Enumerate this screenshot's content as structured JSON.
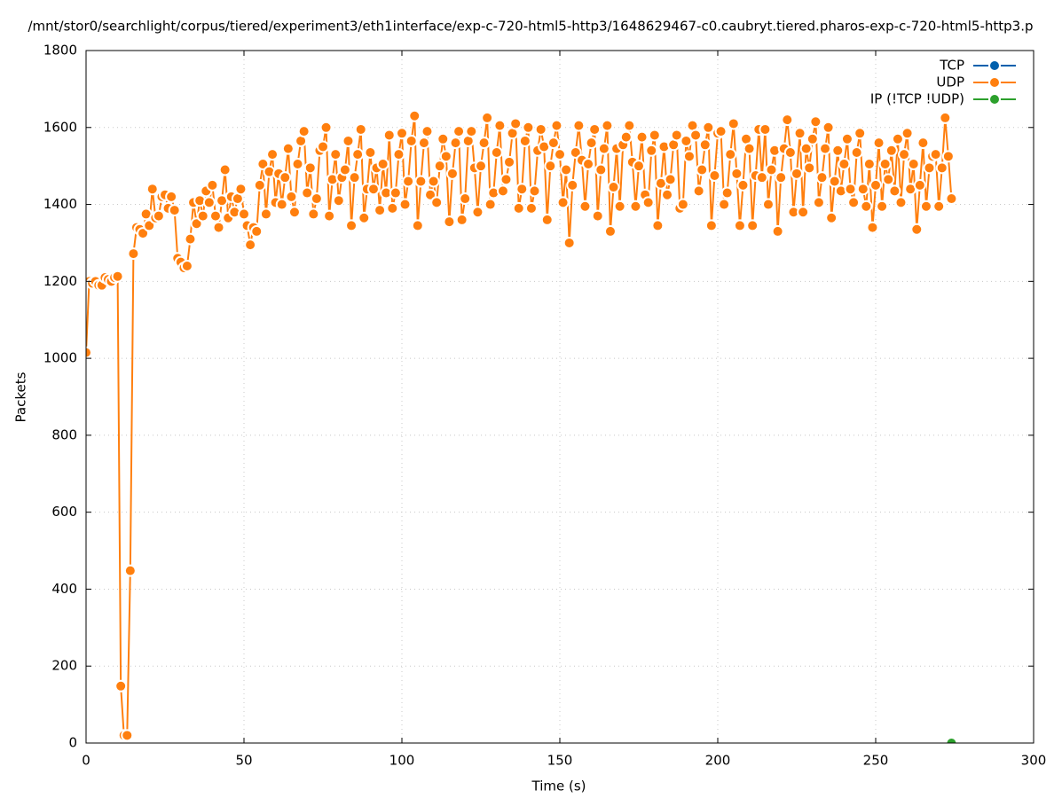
{
  "chart_data": {
    "type": "line",
    "title": "/mnt/stor0/searchlight/corpus/tiered/experiment3/eth1interface/exp-c-720-html5-http3/1648629467-c0.caubryt.tiered.pharos-exp-c-720-html5-http3.p",
    "x_label": "Time (s)",
    "y_label": "Packets",
    "xlim": [
      0,
      300
    ],
    "xticks": [
      0,
      50,
      100,
      150,
      200,
      250,
      300
    ],
    "ylim": [
      0,
      1800
    ],
    "yticks": [
      0,
      200,
      400,
      600,
      800,
      1000,
      1200,
      1400,
      1600,
      1800
    ],
    "grid": true,
    "legend": "top-right",
    "series": [
      {
        "name": "TCP",
        "color": "#0060ad",
        "x": [],
        "values": []
      },
      {
        "name": "UDP",
        "color": "#ff7f0e",
        "x": [
          0,
          1,
          2,
          3,
          4,
          5,
          6,
          7,
          8,
          9,
          10,
          11,
          12,
          13,
          14,
          15,
          16,
          17,
          18,
          19,
          20,
          21,
          22,
          23,
          24,
          25,
          26,
          27,
          28,
          29,
          30,
          31,
          32,
          33,
          34,
          35,
          36,
          37,
          38,
          39,
          40,
          41,
          42,
          43,
          44,
          45,
          46,
          47,
          48,
          49,
          50,
          51,
          52,
          53,
          54,
          55,
          56,
          57,
          58,
          59,
          60,
          61,
          62,
          63,
          64,
          65,
          66,
          67,
          68,
          69,
          70,
          71,
          72,
          73,
          74,
          75,
          76,
          77,
          78,
          79,
          80,
          81,
          82,
          83,
          84,
          85,
          86,
          87,
          88,
          89,
          90,
          91,
          92,
          93,
          94,
          95,
          96,
          97,
          98,
          99,
          100,
          101,
          102,
          103,
          104,
          105,
          106,
          107,
          108,
          109,
          110,
          111,
          112,
          113,
          114,
          115,
          116,
          117,
          118,
          119,
          120,
          121,
          122,
          123,
          124,
          125,
          126,
          127,
          128,
          129,
          130,
          131,
          132,
          133,
          134,
          135,
          136,
          137,
          138,
          139,
          140,
          141,
          142,
          143,
          144,
          145,
          146,
          147,
          148,
          149,
          150,
          151,
          152,
          153,
          154,
          155,
          156,
          157,
          158,
          159,
          160,
          161,
          162,
          163,
          164,
          165,
          166,
          167,
          168,
          169,
          170,
          171,
          172,
          173,
          174,
          175,
          176,
          177,
          178,
          179,
          180,
          181,
          182,
          183,
          184,
          185,
          186,
          187,
          188,
          189,
          190,
          191,
          192,
          193,
          194,
          195,
          196,
          197,
          198,
          199,
          200,
          201,
          202,
          203,
          204,
          205,
          206,
          207,
          208,
          209,
          210,
          211,
          212,
          213,
          214,
          215,
          216,
          217,
          218,
          219,
          220,
          221,
          222,
          223,
          224,
          225,
          226,
          227,
          228,
          229,
          230,
          231,
          232,
          233,
          234,
          235,
          236,
          237,
          238,
          239,
          240,
          241,
          242,
          243,
          244,
          245,
          246,
          247,
          248,
          249,
          250,
          251,
          252,
          253,
          254,
          255,
          256,
          257,
          258,
          259,
          260,
          261,
          262,
          263,
          264,
          265,
          266,
          267,
          268,
          269,
          270,
          271,
          272,
          273,
          274
        ],
        "values": [
          1015,
          1200,
          1195,
          1200,
          1190,
          1190,
          1210,
          1205,
          1200,
          1210,
          1213,
          148,
          20,
          20,
          448,
          1272,
          1340,
          1335,
          1325,
          1375,
          1345,
          1440,
          1365,
          1370,
          1420,
          1425,
          1390,
          1420,
          1385,
          1260,
          1250,
          1235,
          1240,
          1310,
          1405,
          1350,
          1410,
          1370,
          1435,
          1405,
          1450,
          1370,
          1340,
          1410,
          1490,
          1365,
          1420,
          1380,
          1415,
          1440,
          1375,
          1345,
          1295,
          1340,
          1330,
          1450,
          1505,
          1375,
          1485,
          1530,
          1405,
          1480,
          1400,
          1470,
          1545,
          1420,
          1380,
          1505,
          1565,
          1590,
          1430,
          1495,
          1375,
          1415,
          1540,
          1550,
          1600,
          1370,
          1465,
          1530,
          1410,
          1470,
          1490,
          1565,
          1345,
          1470,
          1530,
          1595,
          1365,
          1440,
          1535,
          1440,
          1495,
          1385,
          1505,
          1430,
          1580,
          1390,
          1430,
          1530,
          1585,
          1400,
          1460,
          1565,
          1630,
          1345,
          1460,
          1560,
          1590,
          1425,
          1460,
          1405,
          1500,
          1570,
          1525,
          1355,
          1480,
          1560,
          1590,
          1360,
          1415,
          1565,
          1590,
          1495,
          1380,
          1500,
          1560,
          1625,
          1400,
          1430,
          1535,
          1605,
          1435,
          1465,
          1510,
          1585,
          1610,
          1390,
          1440,
          1565,
          1600,
          1390,
          1435,
          1540,
          1595,
          1550,
          1360,
          1500,
          1560,
          1605,
          1530,
          1405,
          1490,
          1300,
          1450,
          1535,
          1605,
          1515,
          1395,
          1505,
          1560,
          1595,
          1370,
          1490,
          1545,
          1605,
          1330,
          1445,
          1545,
          1395,
          1555,
          1575,
          1605,
          1510,
          1395,
          1500,
          1575,
          1425,
          1405,
          1540,
          1580,
          1345,
          1455,
          1550,
          1425,
          1465,
          1555,
          1580,
          1390,
          1400,
          1565,
          1525,
          1605,
          1580,
          1435,
          1490,
          1555,
          1600,
          1345,
          1475,
          1585,
          1590,
          1400,
          1430,
          1530,
          1610,
          1480,
          1345,
          1450,
          1570,
          1545,
          1345,
          1475,
          1595,
          1470,
          1595,
          1400,
          1490,
          1540,
          1330,
          1470,
          1545,
          1620,
          1535,
          1380,
          1480,
          1585,
          1380,
          1545,
          1495,
          1570,
          1615,
          1405,
          1470,
          1545,
          1600,
          1365,
          1460,
          1540,
          1435,
          1505,
          1570,
          1440,
          1405,
          1535,
          1585,
          1440,
          1395,
          1505,
          1340,
          1450,
          1560,
          1395,
          1505,
          1465,
          1540,
          1435,
          1570,
          1405,
          1530,
          1585,
          1440,
          1505,
          1335,
          1450,
          1560,
          1395,
          1495,
          1525,
          1530,
          1395,
          1495,
          1625,
          1525,
          1415
        ]
      },
      {
        "name": "IP (!TCP  !UDP)",
        "color": "#2ca02c",
        "x": [
          274
        ],
        "values": [
          0
        ]
      }
    ]
  }
}
